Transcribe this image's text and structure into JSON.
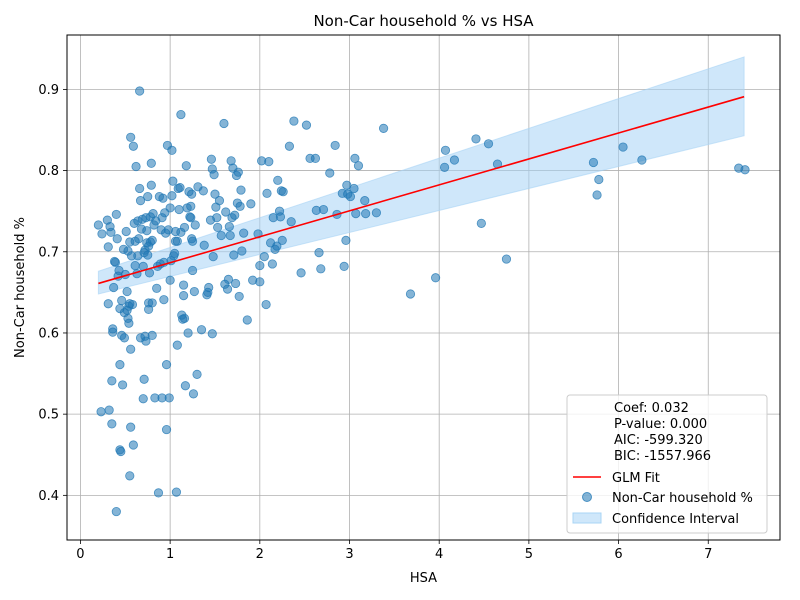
{
  "chart_data": {
    "type": "scatter",
    "title": "Non-Car household % vs HSA",
    "xlabel": "HSA",
    "ylabel": "Non-Car household %",
    "xlim": [
      -0.15,
      7.8
    ],
    "ylim": [
      0.345,
      0.967
    ],
    "xticks": [
      0,
      1,
      2,
      3,
      4,
      5,
      6,
      7
    ],
    "xtick_labels": [
      "0",
      "1",
      "2",
      "3",
      "4",
      "5",
      "6",
      "7"
    ],
    "yticks": [
      0.4,
      0.5,
      0.6,
      0.7,
      0.8,
      0.9
    ],
    "ytick_labels": [
      "0.4",
      "0.5",
      "0.6",
      "0.7",
      "0.8",
      "0.9"
    ],
    "grid": true,
    "legend_position": "lower-right",
    "colors": {
      "points": "#1f77b4",
      "fit": "#ff0000",
      "band": "#a8d4f5",
      "grid": "#b0b0b0"
    },
    "stats": [
      "Coef: 0.032",
      "P-value: 0.000",
      "AIC: -599.320",
      "BIC: -1557.966"
    ],
    "legend": [
      {
        "label": "GLM Fit",
        "kind": "line"
      },
      {
        "label": "Non-Car household %",
        "kind": "marker"
      },
      {
        "label": "Confidence Interval",
        "kind": "patch"
      }
    ],
    "fit_line": {
      "name": "GLM Fit",
      "x": [
        0.2,
        7.4
      ],
      "y": [
        0.661,
        0.891
      ]
    },
    "confidence_band": {
      "name": "Confidence Interval",
      "x": [
        0.2,
        7.4
      ],
      "lower": [
        0.648,
        0.843
      ],
      "upper": [
        0.676,
        0.94
      ]
    },
    "scatter": {
      "name": "Non-Car household %",
      "points": [
        [
          0.2,
          0.733
        ],
        [
          0.23,
          0.503
        ],
        [
          0.24,
          0.722
        ],
        [
          0.3,
          0.739
        ],
        [
          0.31,
          0.636
        ],
        [
          0.31,
          0.706
        ],
        [
          0.32,
          0.505
        ],
        [
          0.33,
          0.731
        ],
        [
          0.34,
          0.724
        ],
        [
          0.35,
          0.488
        ],
        [
          0.35,
          0.541
        ],
        [
          0.36,
          0.605
        ],
        [
          0.36,
          0.601
        ],
        [
          0.37,
          0.656
        ],
        [
          0.38,
          0.688
        ],
        [
          0.39,
          0.687
        ],
        [
          0.4,
          0.38
        ],
        [
          0.4,
          0.746
        ],
        [
          0.41,
          0.716
        ],
        [
          0.42,
          0.67
        ],
        [
          0.43,
          0.677
        ],
        [
          0.44,
          0.63
        ],
        [
          0.44,
          0.456
        ],
        [
          0.44,
          0.561
        ],
        [
          0.45,
          0.454
        ],
        [
          0.46,
          0.64
        ],
        [
          0.46,
          0.597
        ],
        [
          0.47,
          0.536
        ],
        [
          0.48,
          0.703
        ],
        [
          0.49,
          0.594
        ],
        [
          0.49,
          0.625
        ],
        [
          0.5,
          0.672
        ],
        [
          0.51,
          0.725
        ],
        [
          0.52,
          0.628
        ],
        [
          0.52,
          0.651
        ],
        [
          0.53,
          0.618
        ],
        [
          0.53,
          0.701
        ],
        [
          0.54,
          0.633
        ],
        [
          0.54,
          0.612
        ],
        [
          0.55,
          0.636
        ],
        [
          0.55,
          0.424
        ],
        [
          0.55,
          0.712
        ],
        [
          0.56,
          0.484
        ],
        [
          0.56,
          0.58
        ],
        [
          0.56,
          0.841
        ],
        [
          0.57,
          0.695
        ],
        [
          0.58,
          0.635
        ],
        [
          0.59,
          0.462
        ],
        [
          0.59,
          0.83
        ],
        [
          0.6,
          0.735
        ],
        [
          0.61,
          0.713
        ],
        [
          0.61,
          0.683
        ],
        [
          0.62,
          0.805
        ],
        [
          0.63,
          0.673
        ],
        [
          0.64,
          0.738
        ],
        [
          0.64,
          0.695
        ],
        [
          0.65,
          0.716
        ],
        [
          0.66,
          0.778
        ],
        [
          0.66,
          0.898
        ],
        [
          0.67,
          0.763
        ],
        [
          0.67,
          0.594
        ],
        [
          0.68,
          0.728
        ],
        [
          0.69,
          0.74
        ],
        [
          0.7,
          0.682
        ],
        [
          0.7,
          0.519
        ],
        [
          0.71,
          0.543
        ],
        [
          0.71,
          0.699
        ],
        [
          0.72,
          0.702
        ],
        [
          0.72,
          0.596
        ],
        [
          0.73,
          0.59
        ],
        [
          0.73,
          0.742
        ],
        [
          0.74,
          0.726
        ],
        [
          0.74,
          0.711
        ],
        [
          0.75,
          0.768
        ],
        [
          0.75,
          0.696
        ],
        [
          0.76,
          0.637
        ],
        [
          0.76,
          0.629
        ],
        [
          0.76,
          0.707
        ],
        [
          0.77,
          0.674
        ],
        [
          0.78,
          0.743
        ],
        [
          0.78,
          0.712
        ],
        [
          0.79,
          0.809
        ],
        [
          0.79,
          0.782
        ],
        [
          0.8,
          0.637
        ],
        [
          0.8,
          0.597
        ],
        [
          0.8,
          0.714
        ],
        [
          0.81,
          0.747
        ],
        [
          0.82,
          0.733
        ],
        [
          0.83,
          0.52
        ],
        [
          0.84,
          0.738
        ],
        [
          0.85,
          0.655
        ],
        [
          0.86,
          0.682
        ],
        [
          0.87,
          0.403
        ],
        [
          0.88,
          0.768
        ],
        [
          0.89,
          0.685
        ],
        [
          0.9,
          0.727
        ],
        [
          0.91,
          0.52
        ],
        [
          0.91,
          0.742
        ],
        [
          0.92,
          0.766
        ],
        [
          0.93,
          0.641
        ],
        [
          0.93,
          0.687
        ],
        [
          0.94,
          0.748
        ],
        [
          0.95,
          0.723
        ],
        [
          0.96,
          0.561
        ],
        [
          0.96,
          0.481
        ],
        [
          0.97,
          0.831
        ],
        [
          0.98,
          0.727
        ],
        [
          0.99,
          0.52
        ],
        [
          1.0,
          0.754
        ],
        [
          1.0,
          0.665
        ],
        [
          1.01,
          0.689
        ],
        [
          1.02,
          0.825
        ],
        [
          1.02,
          0.769
        ],
        [
          1.03,
          0.787
        ],
        [
          1.04,
          0.695
        ],
        [
          1.05,
          0.698
        ],
        [
          1.06,
          0.713
        ],
        [
          1.06,
          0.725
        ],
        [
          1.07,
          0.404
        ],
        [
          1.08,
          0.585
        ],
        [
          1.08,
          0.713
        ],
        [
          1.09,
          0.778
        ],
        [
          1.1,
          0.752
        ],
        [
          1.11,
          0.779
        ],
        [
          1.12,
          0.869
        ],
        [
          1.12,
          0.724
        ],
        [
          1.13,
          0.622
        ],
        [
          1.14,
          0.617
        ],
        [
          1.15,
          0.646
        ],
        [
          1.15,
          0.659
        ],
        [
          1.16,
          0.618
        ],
        [
          1.16,
          0.73
        ],
        [
          1.17,
          0.535
        ],
        [
          1.18,
          0.806
        ],
        [
          1.19,
          0.754
        ],
        [
          1.2,
          0.6
        ],
        [
          1.21,
          0.774
        ],
        [
          1.22,
          0.743
        ],
        [
          1.23,
          0.756
        ],
        [
          1.23,
          0.742
        ],
        [
          1.24,
          0.771
        ],
        [
          1.24,
          0.716
        ],
        [
          1.25,
          0.713
        ],
        [
          1.25,
          0.677
        ],
        [
          1.26,
          0.525
        ],
        [
          1.27,
          0.651
        ],
        [
          1.28,
          0.733
        ],
        [
          1.3,
          0.549
        ],
        [
          1.31,
          0.78
        ],
        [
          1.35,
          0.604
        ],
        [
          1.37,
          0.775
        ],
        [
          1.38,
          0.708
        ],
        [
          1.41,
          0.647
        ],
        [
          1.42,
          0.65
        ],
        [
          1.43,
          0.656
        ],
        [
          1.45,
          0.739
        ],
        [
          1.46,
          0.814
        ],
        [
          1.47,
          0.599
        ],
        [
          1.47,
          0.802
        ],
        [
          1.48,
          0.694
        ],
        [
          1.49,
          0.795
        ],
        [
          1.5,
          0.771
        ],
        [
          1.51,
          0.755
        ],
        [
          1.52,
          0.742
        ],
        [
          1.53,
          0.73
        ],
        [
          1.55,
          0.763
        ],
        [
          1.57,
          0.72
        ],
        [
          1.6,
          0.858
        ],
        [
          1.61,
          0.66
        ],
        [
          1.62,
          0.749
        ],
        [
          1.64,
          0.654
        ],
        [
          1.65,
          0.666
        ],
        [
          1.66,
          0.731
        ],
        [
          1.67,
          0.72
        ],
        [
          1.68,
          0.812
        ],
        [
          1.69,
          0.742
        ],
        [
          1.7,
          0.803
        ],
        [
          1.71,
          0.696
        ],
        [
          1.72,
          0.745
        ],
        [
          1.73,
          0.661
        ],
        [
          1.74,
          0.794
        ],
        [
          1.75,
          0.76
        ],
        [
          1.76,
          0.798
        ],
        [
          1.77,
          0.645
        ],
        [
          1.78,
          0.756
        ],
        [
          1.79,
          0.776
        ],
        [
          1.8,
          0.701
        ],
        [
          1.82,
          0.723
        ],
        [
          1.86,
          0.616
        ],
        [
          1.9,
          0.759
        ],
        [
          1.92,
          0.665
        ],
        [
          1.98,
          0.722
        ],
        [
          2.0,
          0.683
        ],
        [
          2.0,
          0.663
        ],
        [
          2.02,
          0.812
        ],
        [
          2.05,
          0.694
        ],
        [
          2.07,
          0.635
        ],
        [
          2.08,
          0.772
        ],
        [
          2.1,
          0.811
        ],
        [
          2.12,
          0.711
        ],
        [
          2.14,
          0.685
        ],
        [
          2.15,
          0.742
        ],
        [
          2.17,
          0.703
        ],
        [
          2.19,
          0.707
        ],
        [
          2.2,
          0.788
        ],
        [
          2.22,
          0.75
        ],
        [
          2.23,
          0.743
        ],
        [
          2.24,
          0.775
        ],
        [
          2.25,
          0.714
        ],
        [
          2.26,
          0.774
        ],
        [
          2.33,
          0.83
        ],
        [
          2.35,
          0.737
        ],
        [
          2.38,
          0.861
        ],
        [
          2.46,
          0.674
        ],
        [
          2.52,
          0.856
        ],
        [
          2.56,
          0.815
        ],
        [
          2.62,
          0.815
        ],
        [
          2.63,
          0.751
        ],
        [
          2.66,
          0.699
        ],
        [
          2.68,
          0.679
        ],
        [
          2.71,
          0.752
        ],
        [
          2.78,
          0.797
        ],
        [
          2.84,
          0.831
        ],
        [
          2.86,
          0.746
        ],
        [
          2.92,
          0.772
        ],
        [
          2.94,
          0.682
        ],
        [
          2.96,
          0.714
        ],
        [
          2.97,
          0.782
        ],
        [
          2.98,
          0.771
        ],
        [
          3.01,
          0.768
        ],
        [
          3.05,
          0.778
        ],
        [
          3.06,
          0.815
        ],
        [
          3.07,
          0.747
        ],
        [
          3.1,
          0.806
        ],
        [
          3.17,
          0.763
        ],
        [
          3.18,
          0.747
        ],
        [
          3.3,
          0.748
        ],
        [
          3.38,
          0.852
        ],
        [
          3.68,
          0.648
        ],
        [
          3.96,
          0.668
        ],
        [
          4.06,
          0.804
        ],
        [
          4.07,
          0.825
        ],
        [
          4.17,
          0.813
        ],
        [
          4.41,
          0.839
        ],
        [
          4.47,
          0.735
        ],
        [
          4.55,
          0.833
        ],
        [
          4.65,
          0.808
        ],
        [
          4.75,
          0.691
        ],
        [
          5.72,
          0.81
        ],
        [
          5.76,
          0.77
        ],
        [
          5.78,
          0.789
        ],
        [
          6.05,
          0.829
        ],
        [
          6.26,
          0.813
        ],
        [
          7.34,
          0.803
        ],
        [
          7.41,
          0.801
        ]
      ]
    }
  }
}
